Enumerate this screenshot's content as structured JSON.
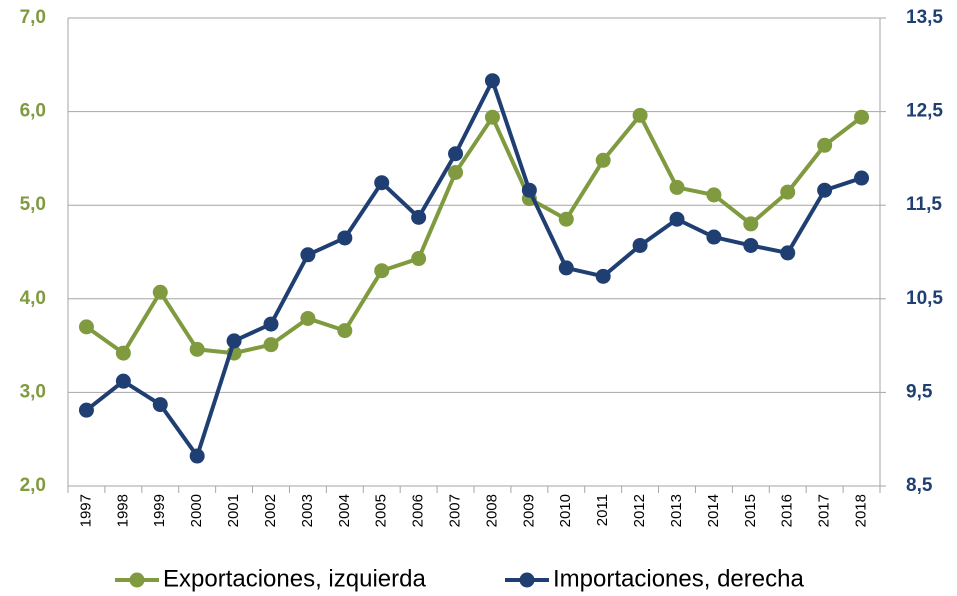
{
  "chart_data": {
    "type": "line",
    "categories": [
      "1997",
      "1998",
      "1999",
      "2000",
      "2001",
      "2002",
      "2003",
      "2004",
      "2005",
      "2006",
      "2007",
      "2008",
      "2009",
      "2010",
      "2011",
      "2012",
      "2013",
      "2014",
      "2015",
      "2016",
      "2017",
      "2018"
    ],
    "series": [
      {
        "name": "Exportaciones, izquierda",
        "color": "#7f9a3f",
        "axis": "y",
        "values": [
          3.7,
          3.42,
          4.07,
          3.46,
          3.42,
          3.51,
          3.79,
          3.66,
          4.3,
          4.43,
          5.35,
          5.94,
          5.07,
          4.85,
          5.48,
          5.96,
          5.19,
          5.11,
          4.8,
          5.14,
          5.64,
          5.94
        ]
      },
      {
        "name": "Importaciones, derecha",
        "color": "#1f3f73",
        "axis": "y2",
        "values": [
          9.31,
          9.62,
          9.37,
          8.82,
          10.05,
          10.23,
          10.97,
          11.15,
          11.74,
          11.37,
          12.05,
          12.83,
          11.66,
          10.83,
          10.74,
          11.07,
          11.35,
          11.16,
          11.07,
          10.99,
          11.66,
          11.79
        ]
      }
    ],
    "ylim": [
      2,
      7
    ],
    "yticks": [
      {
        "value": 2,
        "label": "2,0"
      },
      {
        "value": 3,
        "label": "3,0"
      },
      {
        "value": 4,
        "label": "4,0"
      },
      {
        "value": 5,
        "label": "5,0"
      },
      {
        "value": 6,
        "label": "6,0"
      },
      {
        "value": 7,
        "label": "7,0"
      }
    ],
    "y2lim": [
      8.5,
      13.5
    ],
    "y2ticks": [
      {
        "value": 8.5,
        "label": "8,5"
      },
      {
        "value": 9.5,
        "label": "9,5"
      },
      {
        "value": 10.5,
        "label": "10,5"
      },
      {
        "value": 11.5,
        "label": "11,5"
      },
      {
        "value": 12.5,
        "label": "12,5"
      },
      {
        "value": 13.5,
        "label": "13,5"
      }
    ],
    "grid": true,
    "legend": "bottom"
  }
}
